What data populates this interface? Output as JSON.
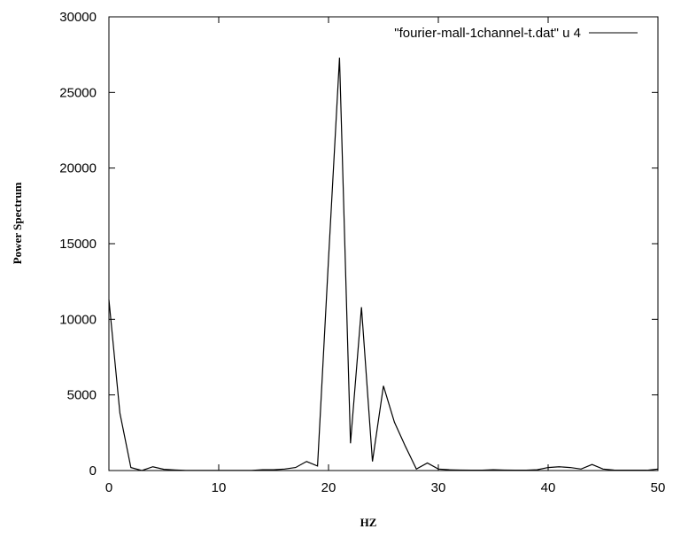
{
  "chart_data": {
    "type": "line",
    "title": "",
    "xlabel": "HZ",
    "ylabel": "Power Spectrum",
    "xlim": [
      0,
      50
    ],
    "ylim": [
      0,
      30000
    ],
    "x_ticks": [
      "0",
      "10",
      "20",
      "30",
      "40",
      "50"
    ],
    "y_ticks": [
      "0",
      "5000",
      "10000",
      "15000",
      "20000",
      "25000",
      "30000"
    ],
    "grid": false,
    "legend_position": "top-right",
    "series": [
      {
        "name": "\"fourier-mall-1channel-t.dat\" u 4",
        "color": "#000000",
        "x": [
          0,
          1,
          2,
          3,
          4,
          5,
          6,
          7,
          8,
          9,
          10,
          11,
          12,
          13,
          14,
          15,
          16,
          17,
          18,
          19,
          20,
          21,
          22,
          23,
          24,
          25,
          26,
          27,
          28,
          29,
          30,
          31,
          32,
          33,
          34,
          35,
          36,
          37,
          38,
          39,
          40,
          41,
          42,
          43,
          44,
          45,
          46,
          47,
          48,
          49,
          50
        ],
        "y": [
          11300,
          3800,
          200,
          0,
          250,
          80,
          40,
          10,
          10,
          10,
          10,
          10,
          10,
          10,
          50,
          50,
          100,
          200,
          600,
          300,
          14000,
          27300,
          1800,
          10800,
          600,
          5600,
          3200,
          1600,
          100,
          500,
          100,
          50,
          30,
          20,
          20,
          50,
          30,
          20,
          20,
          50,
          200,
          250,
          200,
          100,
          400,
          100,
          30,
          20,
          20,
          20,
          100
        ]
      }
    ]
  }
}
